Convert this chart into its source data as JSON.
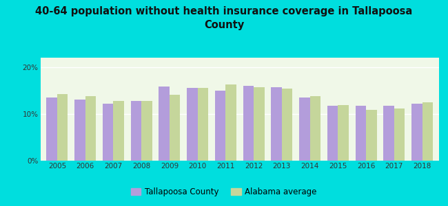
{
  "title": "40-64 population without health insurance coverage in Tallapoosa\nCounty",
  "years": [
    2005,
    2006,
    2007,
    2008,
    2009,
    2010,
    2011,
    2012,
    2013,
    2014,
    2015,
    2016,
    2017,
    2018
  ],
  "tallapoosa": [
    13.5,
    13.0,
    12.2,
    12.8,
    15.8,
    15.5,
    15.0,
    16.0,
    15.7,
    13.5,
    11.7,
    11.7,
    11.8,
    12.2
  ],
  "alabama": [
    14.2,
    13.8,
    12.8,
    12.7,
    14.1,
    15.5,
    16.3,
    15.7,
    15.4,
    13.8,
    11.9,
    10.9,
    11.2,
    12.4
  ],
  "tallapoosa_color": "#b39ddb",
  "alabama_color": "#c5d69b",
  "background_color": "#00dede",
  "plot_bg": "#f0f8e8",
  "yticks": [
    0,
    10,
    20
  ],
  "ylim": [
    0,
    22
  ],
  "legend_labels": [
    "Tallapoosa County",
    "Alabama average"
  ],
  "bar_width": 0.38,
  "title_fontsize": 10.5,
  "tick_fontsize": 7.5
}
